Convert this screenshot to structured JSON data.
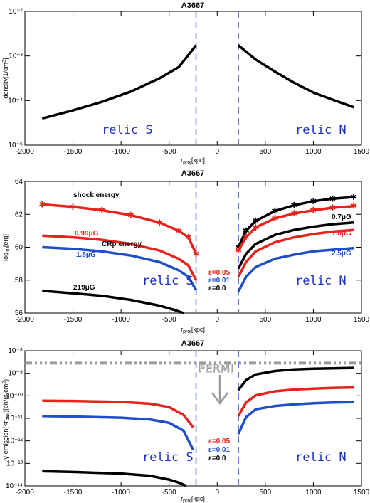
{
  "chart_data": [
    {
      "type": "line",
      "title": "A3667",
      "xlabel": "r_proj[kpc]",
      "ylabel": "density[1/cm³]",
      "xlim": [
        -2000,
        1500
      ],
      "ylim_log10": [
        -5,
        -2
      ],
      "y_scale": "log",
      "xticks": [
        "-2000",
        "-1500",
        "-1000",
        "-500",
        "0",
        "500",
        "1000",
        "1500"
      ],
      "yticks": [
        "10⁻⁵",
        "10⁻⁴",
        "10⁻³",
        "10⁻²"
      ],
      "relic_positions_kpc": [
        -220,
        220
      ],
      "relic_labels": [
        "relic S",
        "relic N"
      ],
      "series": [
        {
          "color": "#000000",
          "x": [
            -1820,
            -1500,
            -1200,
            -900,
            -600,
            -400,
            -220
          ],
          "y_log10": [
            -4.4,
            -4.22,
            -4.03,
            -3.8,
            -3.5,
            -3.25,
            -2.76
          ]
        },
        {
          "color": "#000000",
          "x": [
            220,
            400,
            600,
            800,
            1000,
            1200,
            1420
          ],
          "y_log10": [
            -2.76,
            -3.08,
            -3.35,
            -3.6,
            -3.82,
            -3.98,
            -4.15
          ]
        }
      ]
    },
    {
      "type": "line",
      "title": "A3667",
      "xlabel": "r_proj[kpc]",
      "ylabel": "log₁₀[erg]",
      "xlim": [
        -2000,
        1500
      ],
      "ylim": [
        56,
        64
      ],
      "xticks": [
        "-2000",
        "-1500",
        "-1000",
        "-500",
        "0",
        "500",
        "1000",
        "1500"
      ],
      "yticks": [
        "56",
        "58",
        "60",
        "62",
        "64"
      ],
      "relic_positions_kpc": [
        -220,
        220
      ],
      "relic_labels": [
        "relic S",
        "relic N"
      ],
      "annotations": {
        "shock_energy": "shock energy",
        "crp_energy": "CRp energy",
        "b_south_red": "0.99μG",
        "b_south_blue": "1.8μG",
        "b_south_black": "219μG",
        "b_north_black": "0.7μG",
        "b_north_red": "1.0μG",
        "b_north_blue": "2.5μG",
        "eps_red": "ε=0.05",
        "eps_blue": "ε=0.01",
        "eps_black": "ε=0.0"
      },
      "series": [
        {
          "color": "#e8231d",
          "marker": "asterisk",
          "x": [
            -1820,
            -1500,
            -1200,
            -900,
            -600,
            -400,
            -300,
            -220
          ],
          "y": [
            62.6,
            62.45,
            62.25,
            61.95,
            61.5,
            61.0,
            60.6,
            59.6
          ]
        },
        {
          "color": "#e8231d",
          "x": [
            -1820,
            -1500,
            -1200,
            -900,
            -600,
            -400,
            -300,
            -220
          ],
          "y": [
            60.7,
            60.6,
            60.45,
            60.2,
            59.8,
            59.3,
            58.9,
            58.0
          ]
        },
        {
          "color": "#1f4fc8",
          "x": [
            -1820,
            -1500,
            -1200,
            -900,
            -600,
            -400,
            -300,
            -220
          ],
          "y": [
            60.0,
            59.9,
            59.75,
            59.5,
            59.1,
            58.6,
            58.2,
            57.4
          ]
        },
        {
          "color": "#000000",
          "x": [
            -1820,
            -1500,
            -1200,
            -900,
            -600,
            -450,
            -350
          ],
          "y": [
            57.35,
            57.2,
            57.05,
            56.8,
            56.45,
            56.2,
            56.0
          ]
        },
        {
          "color": "#000000",
          "marker": "asterisk",
          "x": [
            220,
            300,
            400,
            600,
            800,
            1000,
            1200,
            1420
          ],
          "y": [
            60.0,
            61.0,
            61.6,
            62.2,
            62.55,
            62.8,
            62.95,
            63.05
          ]
        },
        {
          "color": "#e8231d",
          "marker": "asterisk",
          "x": [
            220,
            300,
            400,
            600,
            800,
            1000,
            1200,
            1420
          ],
          "y": [
            59.8,
            60.6,
            61.2,
            61.75,
            62.05,
            62.25,
            62.4,
            62.5
          ]
        },
        {
          "color": "#000000",
          "x": [
            220,
            300,
            400,
            600,
            800,
            1000,
            1200,
            1420
          ],
          "y": [
            58.7,
            59.6,
            60.2,
            60.75,
            61.05,
            61.25,
            61.4,
            61.5
          ]
        },
        {
          "color": "#e8231d",
          "x": [
            220,
            300,
            400,
            600,
            800,
            1000,
            1200,
            1420
          ],
          "y": [
            58.2,
            59.1,
            59.75,
            60.3,
            60.6,
            60.8,
            60.95,
            61.05
          ]
        },
        {
          "color": "#1f4fc8",
          "x": [
            220,
            300,
            400,
            600,
            800,
            1000,
            1200,
            1420
          ],
          "y": [
            57.3,
            58.2,
            58.8,
            59.3,
            59.55,
            59.75,
            59.85,
            59.95
          ]
        }
      ]
    },
    {
      "type": "line",
      "title": "A3667",
      "xlabel": "r_proj[kpc]",
      "ylabel": "γ-emission(<r_proj)[ph/(s cm²)]",
      "xlim": [
        -2000,
        1500
      ],
      "ylim_log10": [
        -14,
        -8
      ],
      "y_scale": "log",
      "xticks": [
        "-2000",
        "-1500",
        "-1000",
        "-500",
        "0",
        "500",
        "1000",
        "1500"
      ],
      "yticks": [
        "10⁻¹⁴",
        "10⁻¹³",
        "10⁻¹²",
        "10⁻¹¹",
        "10⁻¹⁰",
        "10⁻⁹",
        "10⁻⁸"
      ],
      "relic_positions_kpc": [
        -220,
        220
      ],
      "relic_labels": [
        "relic S",
        "relic N"
      ],
      "fermi_label": "FERMI",
      "fermi_limit_log10": -8.55,
      "annotations": {
        "eps_red": "ε=0.05",
        "eps_blue": "ε=0.01",
        "eps_black": "ε=0.0"
      },
      "series": [
        {
          "color": "#e8231d",
          "x": [
            -1820,
            -1500,
            -1000,
            -700,
            -500,
            -350,
            -250
          ],
          "y_log10": [
            -10.22,
            -10.23,
            -10.27,
            -10.35,
            -10.5,
            -10.85,
            -11.4
          ]
        },
        {
          "color": "#1f4fc8",
          "x": [
            -1820,
            -1500,
            -1000,
            -700,
            -500,
            -350,
            -250
          ],
          "y_log10": [
            -10.9,
            -10.92,
            -10.97,
            -11.05,
            -11.2,
            -11.55,
            -12.4
          ]
        },
        {
          "color": "#000000",
          "x": [
            -1820,
            -1500,
            -1000,
            -700,
            -500,
            -400,
            -320
          ],
          "y_log10": [
            -13.35,
            -13.38,
            -13.45,
            -13.55,
            -13.72,
            -13.85,
            -14.0
          ]
        },
        {
          "color": "#000000",
          "x": [
            220,
            300,
            400,
            600,
            800,
            1000,
            1200,
            1420
          ],
          "y_log10": [
            -9.75,
            -9.3,
            -9.05,
            -8.9,
            -8.83,
            -8.8,
            -8.78,
            -8.76
          ]
        },
        {
          "color": "#e8231d",
          "x": [
            220,
            300,
            400,
            600,
            800,
            1000,
            1200,
            1420
          ],
          "y_log10": [
            -10.9,
            -10.3,
            -9.98,
            -9.8,
            -9.72,
            -9.68,
            -9.65,
            -9.63
          ]
        },
        {
          "color": "#1f4fc8",
          "x": [
            220,
            300,
            400,
            600,
            800,
            1000,
            1200,
            1420
          ],
          "y_log10": [
            -11.7,
            -10.95,
            -10.6,
            -10.45,
            -10.38,
            -10.33,
            -10.3,
            -10.28
          ]
        }
      ]
    }
  ]
}
